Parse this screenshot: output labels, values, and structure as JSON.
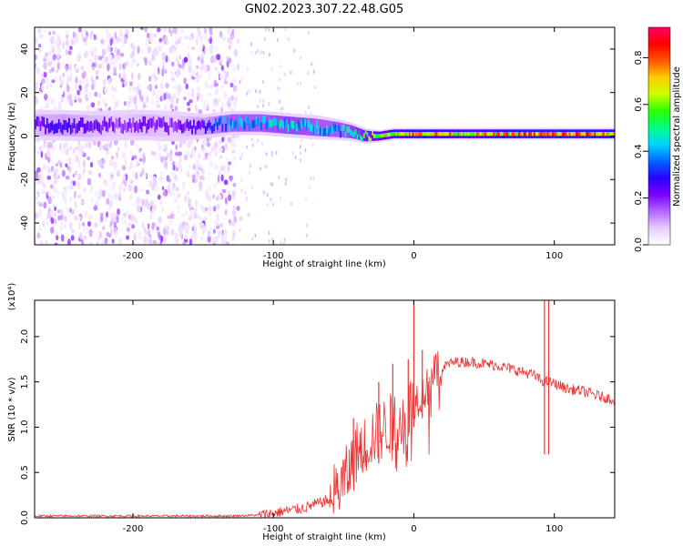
{
  "title": "GN02.2023.307.22.48.G05",
  "colorbar": {
    "label": "Normalized spectral amplitude",
    "ticks": [
      "0.0",
      "0.2",
      "0.4",
      "0.6",
      "0.8"
    ],
    "tick_values": [
      0.0,
      0.2,
      0.4,
      0.6,
      0.8
    ],
    "range": [
      0.0,
      0.93
    ],
    "colormap": [
      "#ffffff",
      "#e6ccff",
      "#b366ff",
      "#7a00ff",
      "#2a00ff",
      "#0066ff",
      "#00d5ff",
      "#00ff80",
      "#2aff00",
      "#ccff00",
      "#ffcc00",
      "#ff5500",
      "#ff0000",
      "#ff0066"
    ]
  },
  "chart_data": [
    {
      "type": "heatmap",
      "title": "GN02.2023.307.22.48.G05",
      "xlabel": "Height of straight line (km)",
      "ylabel": "Frequency (Hz)",
      "xlim": [
        -270,
        143
      ],
      "ylim": [
        -50,
        50
      ],
      "x_ticks": [
        -200,
        -100,
        0,
        100
      ],
      "x_tick_labels": [
        "-200",
        "-100",
        "0",
        "100"
      ],
      "y_ticks": [
        -40,
        -20,
        0,
        20,
        40
      ],
      "y_tick_labels": [
        "-40",
        "-20",
        "0",
        "20",
        "40"
      ],
      "ridge": {
        "x": [
          -270,
          -250,
          -230,
          -210,
          -190,
          -170,
          -150,
          -130,
          -110,
          -90,
          -70,
          -55,
          -45,
          -35,
          -25,
          -15,
          -5,
          0,
          20,
          40,
          60,
          80,
          100,
          120,
          143
        ],
        "frequency_hz": [
          5,
          5,
          4.5,
          5,
          5,
          4.5,
          4.5,
          6,
          6,
          5,
          4,
          3,
          2,
          0,
          0,
          1,
          1,
          1,
          1,
          1,
          1,
          1,
          1,
          1,
          1
        ],
        "half_width_hz": [
          5,
          5,
          5,
          5,
          5,
          5,
          4,
          4,
          4,
          4,
          4,
          3.5,
          3,
          2.5,
          2,
          2,
          2,
          2,
          2,
          2,
          2,
          2,
          2,
          2,
          2
        ],
        "amplitude": [
          0.25,
          0.3,
          0.25,
          0.2,
          0.25,
          0.2,
          0.3,
          0.45,
          0.45,
          0.5,
          0.45,
          0.45,
          0.5,
          0.6,
          0.7,
          0.75,
          0.8,
          0.85,
          0.8,
          0.75,
          0.8,
          0.85,
          0.85,
          0.85,
          0.8
        ]
      },
      "noise_region_x": [
        -270,
        -125
      ]
    },
    {
      "type": "line",
      "xlabel": "Height of straight line (km)",
      "ylabel": "SNR (10 * v/v)",
      "y_multiplier": "(x10⁴)",
      "xlim": [
        -270,
        143
      ],
      "ylim": [
        0,
        2.4
      ],
      "x_ticks": [
        -200,
        -100,
        0,
        100
      ],
      "x_tick_labels": [
        "-200",
        "-100",
        "0",
        "100"
      ],
      "y_ticks": [
        0.0,
        0.5,
        1.0,
        1.5,
        2.0
      ],
      "y_tick_labels": [
        "0.0",
        "0.5",
        "1.0",
        "1.5",
        "2.0"
      ],
      "color": "#ee3333",
      "series": [
        {
          "x": [
            -270,
            -250,
            -230,
            -210,
            -190,
            -170,
            -150,
            -130,
            -110,
            -100,
            -90,
            -80,
            -70,
            -60,
            -50,
            -45,
            -40,
            -35,
            -30,
            -25,
            -20,
            -15,
            -10,
            -5,
            0,
            5,
            10,
            15,
            20,
            25,
            30,
            40,
            50,
            60,
            70,
            80,
            85,
            90,
            95,
            100,
            110,
            120,
            130,
            143
          ],
          "values": [
            0.02,
            0.02,
            0.02,
            0.02,
            0.02,
            0.02,
            0.02,
            0.02,
            0.03,
            0.05,
            0.08,
            0.1,
            0.15,
            0.2,
            0.4,
            0.55,
            0.75,
            0.8,
            0.9,
            0.95,
            1.0,
            1.05,
            1.1,
            1.15,
            1.3,
            1.35,
            1.45,
            1.6,
            1.65,
            1.7,
            1.72,
            1.72,
            1.7,
            1.68,
            1.64,
            1.6,
            1.58,
            1.52,
            1.5,
            1.48,
            1.42,
            1.4,
            1.35,
            1.3
          ]
        }
      ],
      "spikes": [
        {
          "x": -43,
          "peak": 1.1,
          "base": 0.45
        },
        {
          "x": -25,
          "peak": 1.5,
          "base": 0.6
        },
        {
          "x": -15,
          "peak": 1.7,
          "base": 0.75
        },
        {
          "x": -4,
          "peak": 1.75,
          "base": 0.9
        },
        {
          "x": 0,
          "peak": 2.4,
          "base": 1.0
        },
        {
          "x": 6,
          "peak": 1.85,
          "base": 1.1
        },
        {
          "x": 93,
          "peak": 2.4,
          "base": 0.7
        },
        {
          "x": 96,
          "peak": 2.4,
          "base": 0.7
        }
      ]
    }
  ]
}
